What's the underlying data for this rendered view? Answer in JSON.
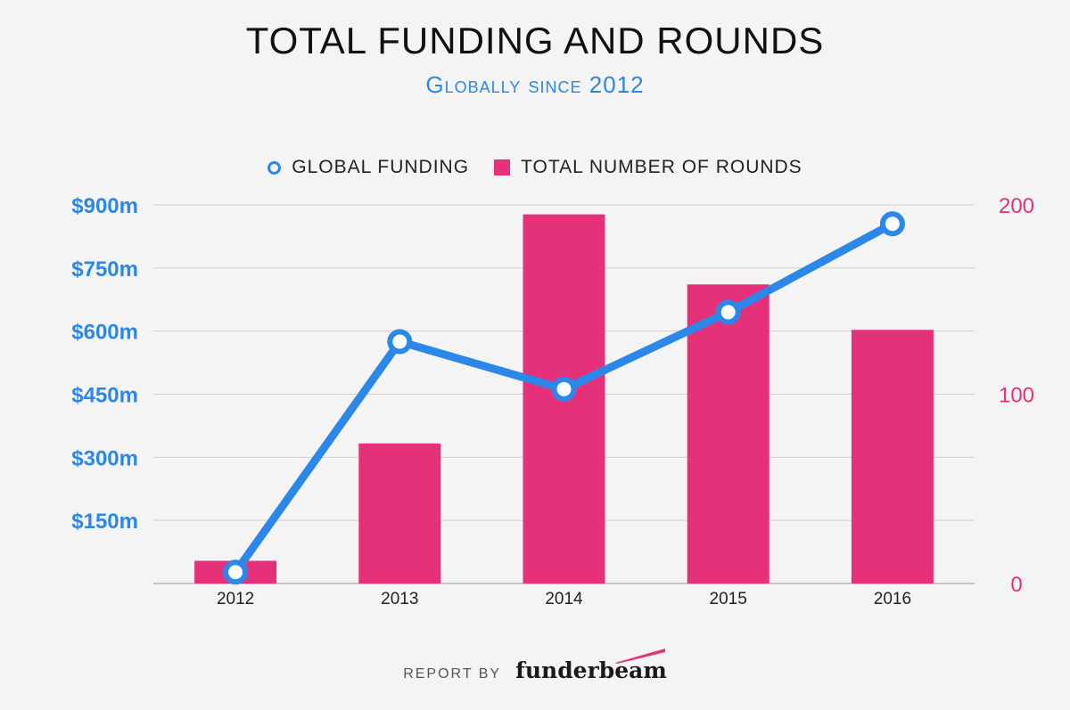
{
  "header": {
    "title": "TOTAL FUNDING AND ROUNDS",
    "subtitle": "Globally since 2012"
  },
  "legend": {
    "funding_label": "GLOBAL FUNDING",
    "rounds_label": "TOTAL NUMBER OF ROUNDS"
  },
  "colors": {
    "funding": "#2b87e8",
    "rounds": "#e5317a",
    "grid": "#cfcfcf",
    "background": "#f4f4f4"
  },
  "chart_data": {
    "type": "bar",
    "title": "TOTAL FUNDING AND ROUNDS",
    "subtitle": "Globally since 2012",
    "categories": [
      "2012",
      "2013",
      "2014",
      "2015",
      "2016"
    ],
    "series": [
      {
        "name": "TOTAL NUMBER OF ROUNDS",
        "type": "bar",
        "axis": "right",
        "values": [
          12,
          74,
          195,
          158,
          134
        ]
      },
      {
        "name": "GLOBAL FUNDING",
        "type": "line",
        "axis": "left",
        "unit": "$m",
        "values": [
          27,
          575,
          462,
          645,
          855
        ]
      }
    ],
    "y_left": {
      "ylim": [
        0,
        900
      ],
      "ticks": [
        150,
        300,
        450,
        600,
        750,
        900
      ],
      "tick_labels": [
        "$150m",
        "$300m",
        "$450m",
        "$600m",
        "$750m",
        "$900m"
      ]
    },
    "y_right": {
      "ylim": [
        0,
        200
      ],
      "ticks": [
        0,
        100,
        200
      ],
      "tick_labels": [
        "0",
        "100",
        "200"
      ]
    },
    "grid": true,
    "legend_position": "top-center"
  },
  "footer": {
    "report_by": "REPORT BY",
    "brand": "funderbeam"
  }
}
